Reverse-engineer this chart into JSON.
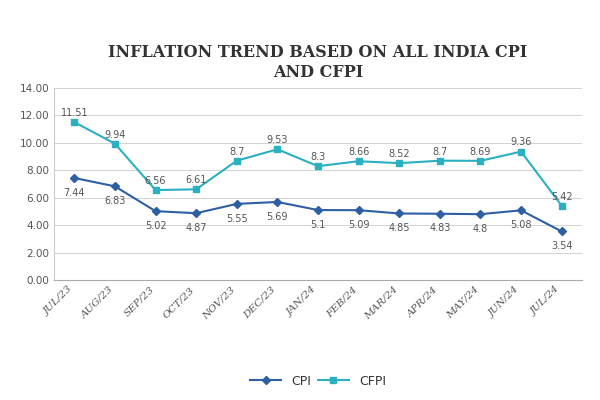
{
  "title": "INFLATION TREND BASED ON ALL INDIA CPI\nAND CFPI",
  "categories": [
    "JUL/23",
    "AUG/23",
    "SEP/23",
    "OCT/23",
    "NOV/23",
    "DEC/23",
    "JAN/24",
    "FEB/24",
    "MAR/24",
    "APR/24",
    "MAY/24",
    "JUN/24",
    "JUL/24"
  ],
  "cpi": [
    7.44,
    6.83,
    5.02,
    4.87,
    5.55,
    5.69,
    5.1,
    5.09,
    4.85,
    4.83,
    4.8,
    5.08,
    3.54
  ],
  "cfpi": [
    11.51,
    9.94,
    6.56,
    6.61,
    8.7,
    9.53,
    8.3,
    8.66,
    8.52,
    8.7,
    8.69,
    9.36,
    5.42
  ],
  "cpi_color": "#2e5fa3",
  "cfpi_color": "#2ab0c0",
  "cpi_label": "CPI",
  "cfpi_label": "CFPI",
  "ylim": [
    0,
    14
  ],
  "yticks": [
    0.0,
    2.0,
    4.0,
    6.0,
    8.0,
    10.0,
    12.0,
    14.0
  ],
  "background_color": "#ffffff",
  "title_fontsize": 11.5,
  "label_fontsize": 7.5,
  "annotation_fontsize": 7.0,
  "legend_fontsize": 9
}
